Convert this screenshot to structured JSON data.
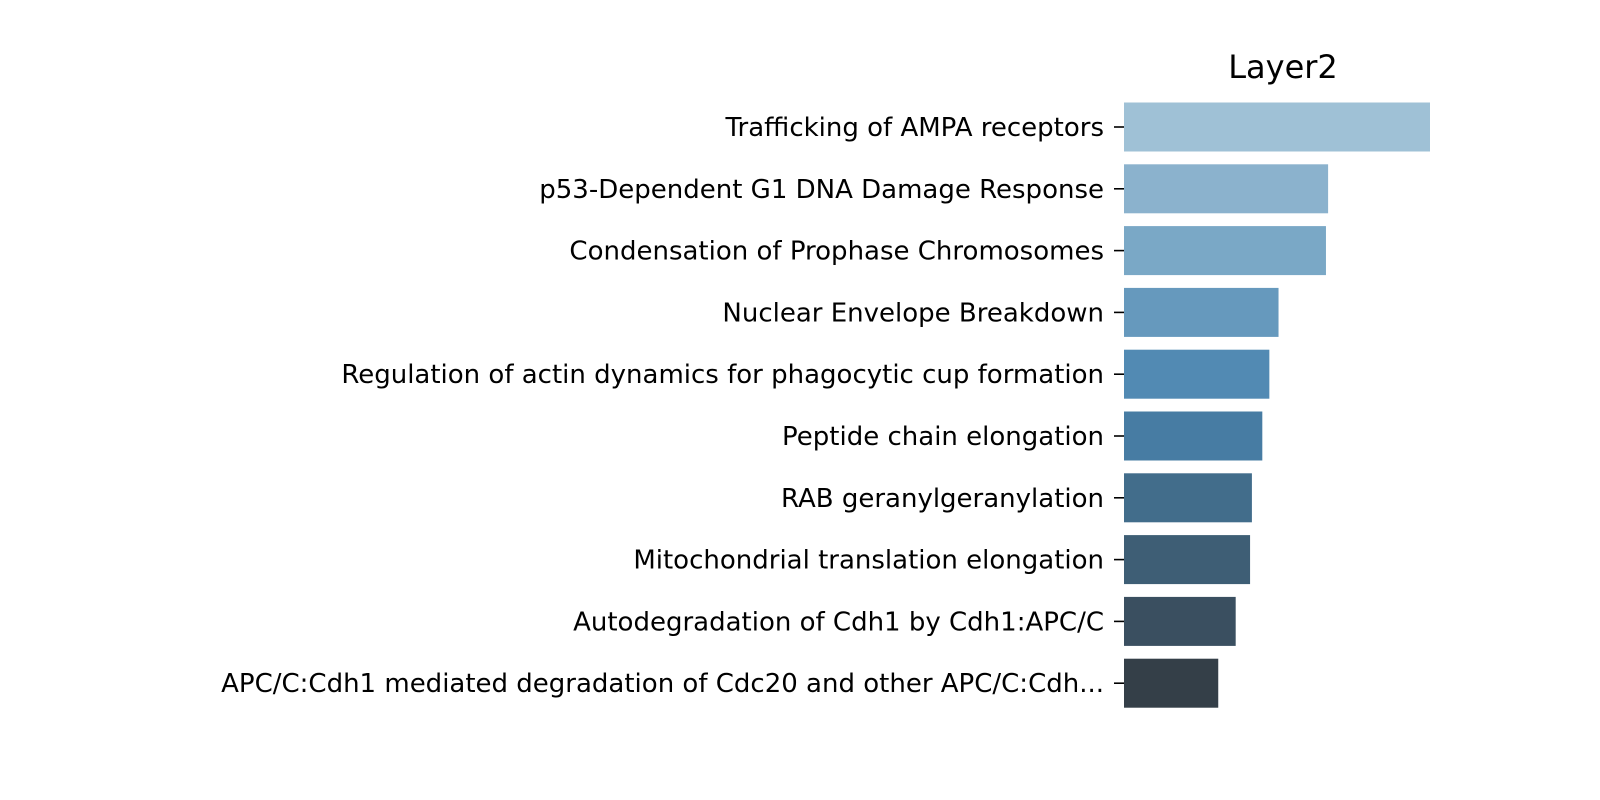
{
  "chart_data": {
    "type": "bar",
    "orientation": "horizontal",
    "title": "Layer2",
    "xlabel": "",
    "ylabel": "",
    "grid": false,
    "legend": "none",
    "xlim": [
      0,
      1.0
    ],
    "categories": [
      "Trafficking of AMPA receptors",
      "p53-Dependent G1 DNA Damage Response",
      "Condensation of Prophase Chromosomes",
      "Nuclear Envelope Breakdown",
      "Regulation of actin dynamics for phagocytic cup formation",
      "Peptide chain elongation",
      "RAB geranylgeranylation",
      "Mitochondrial translation elongation",
      "Autodegradation of Cdh1 by Cdh1:APC/C",
      "APC/C:Cdh1 mediated degradation of Cdc20 and other APC/C:Cdh..."
    ],
    "values": [
      1.0,
      0.667,
      0.66,
      0.505,
      0.475,
      0.452,
      0.418,
      0.412,
      0.365,
      0.308
    ],
    "colors": [
      "#9fc1d6",
      "#8bb2cd",
      "#7aa8c6",
      "#6699bd",
      "#528ab3",
      "#477ca3",
      "#426d8b",
      "#3e5e75",
      "#3a4f60",
      "#343f48"
    ]
  }
}
